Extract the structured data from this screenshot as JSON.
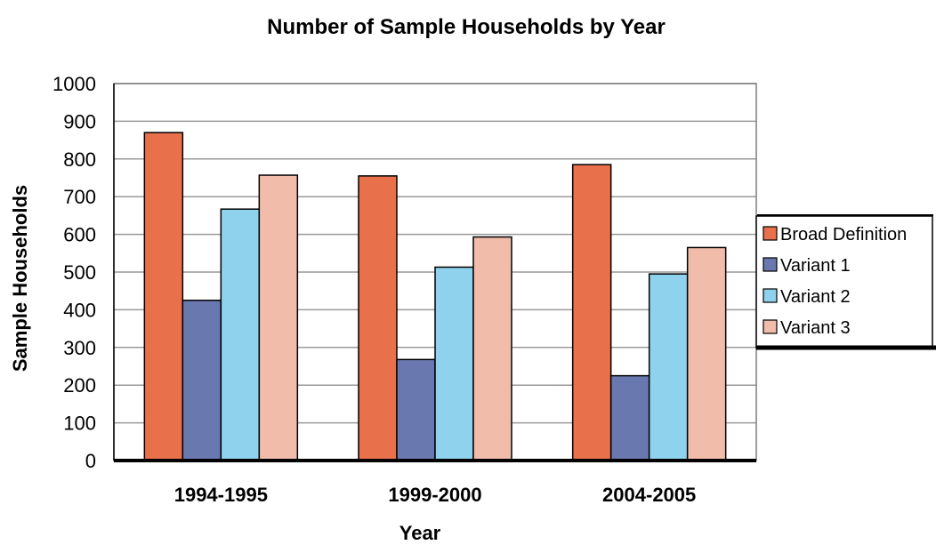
{
  "chart_data": {
    "type": "bar",
    "title": "Number of Sample Households by Year",
    "xlabel": "Year",
    "ylabel": "Sample Households",
    "ylim": [
      0,
      1000
    ],
    "yticks": [
      "0",
      "100",
      "200",
      "300",
      "400",
      "500",
      "600",
      "700",
      "800",
      "900",
      "1000"
    ],
    "categories": [
      "1994-1995",
      "1999-2000",
      "2004-2005"
    ],
    "series": [
      {
        "name": "Broad Definition",
        "color": "#E8704A",
        "values": [
          870,
          755,
          785
        ]
      },
      {
        "name": "Variant 1",
        "color": "#6A78B0",
        "values": [
          425,
          268,
          225
        ]
      },
      {
        "name": "Variant 2",
        "color": "#8FD2EE",
        "values": [
          667,
          513,
          495
        ]
      },
      {
        "name": "Variant 3",
        "color": "#F1BDAA",
        "values": [
          757,
          593,
          565
        ]
      }
    ],
    "grid": true,
    "legend_position": "right"
  }
}
